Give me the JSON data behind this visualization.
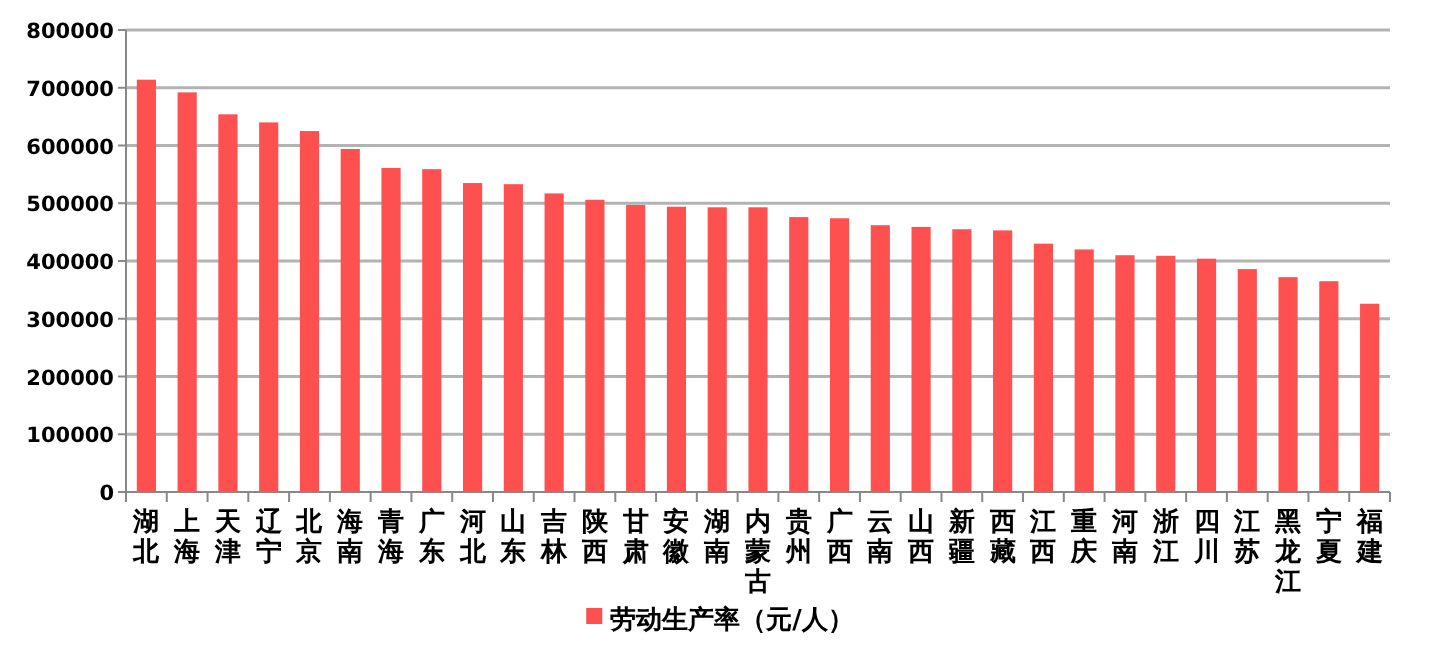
{
  "chart_data": {
    "type": "bar",
    "categories": [
      "湖北",
      "上海",
      "天津",
      "辽宁",
      "北京",
      "海南",
      "青海",
      "广东",
      "河北",
      "山东",
      "吉林",
      "陕西",
      "甘肃",
      "安徽",
      "湖南",
      "内蒙古",
      "贵州",
      "广西",
      "云南",
      "山西",
      "新疆",
      "西藏",
      "江西",
      "重庆",
      "河南",
      "浙江",
      "四川",
      "江苏",
      "黑龙江",
      "宁夏",
      "福建"
    ],
    "series": [
      {
        "name": "劳动生产率（元/人）",
        "color": "#ff5050",
        "values": [
          714000,
          692000,
          654000,
          640000,
          625000,
          594000,
          561000,
          559000,
          535000,
          533000,
          517000,
          506000,
          497000,
          494000,
          493000,
          493000,
          476000,
          474000,
          462000,
          459000,
          455000,
          453000,
          430000,
          420000,
          410000,
          409000,
          404000,
          386000,
          372000,
          365000,
          326000
        ]
      }
    ],
    "ylim": [
      0,
      800000
    ],
    "yticks": [
      0,
      100000,
      200000,
      300000,
      400000,
      500000,
      600000,
      700000,
      800000
    ],
    "grid": "y",
    "legend": "bottom"
  }
}
